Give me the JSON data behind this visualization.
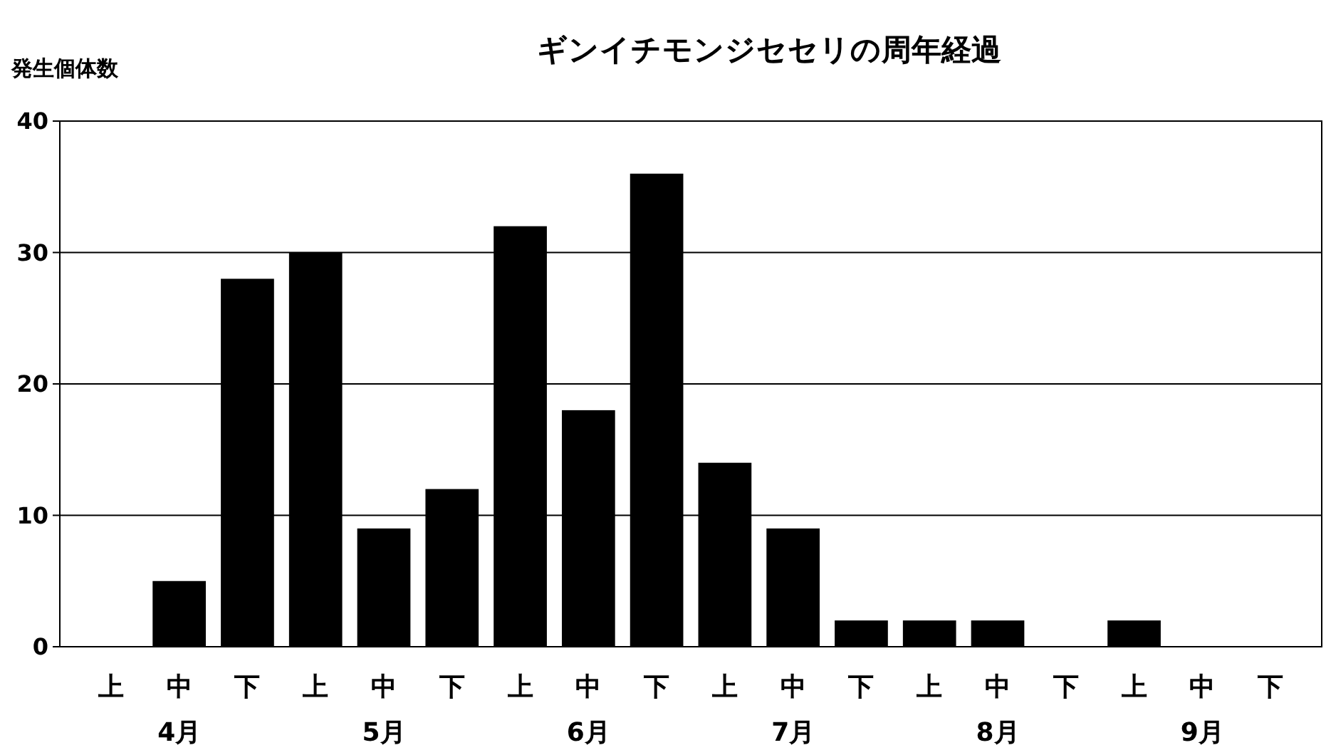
{
  "chart_data": {
    "type": "bar",
    "title": "ギンイチモンジセセリの周年経過",
    "ylabel": "発生個体数",
    "categories": [
      "上",
      "中",
      "下",
      "上",
      "中",
      "下",
      "上",
      "中",
      "下",
      "上",
      "中",
      "下",
      "上",
      "中",
      "下",
      "上",
      "中",
      "下"
    ],
    "values": [
      0,
      5,
      28,
      30,
      9,
      12,
      32,
      18,
      36,
      14,
      9,
      2,
      2,
      2,
      0,
      2,
      0,
      0
    ],
    "color": "#000000",
    "ylim": [
      0,
      40
    ],
    "yticks": [
      0,
      10,
      20,
      30,
      40
    ],
    "grid": "y",
    "annotations": [
      "4月",
      "5月",
      "6月",
      "7月",
      "8月",
      "9月"
    ]
  }
}
